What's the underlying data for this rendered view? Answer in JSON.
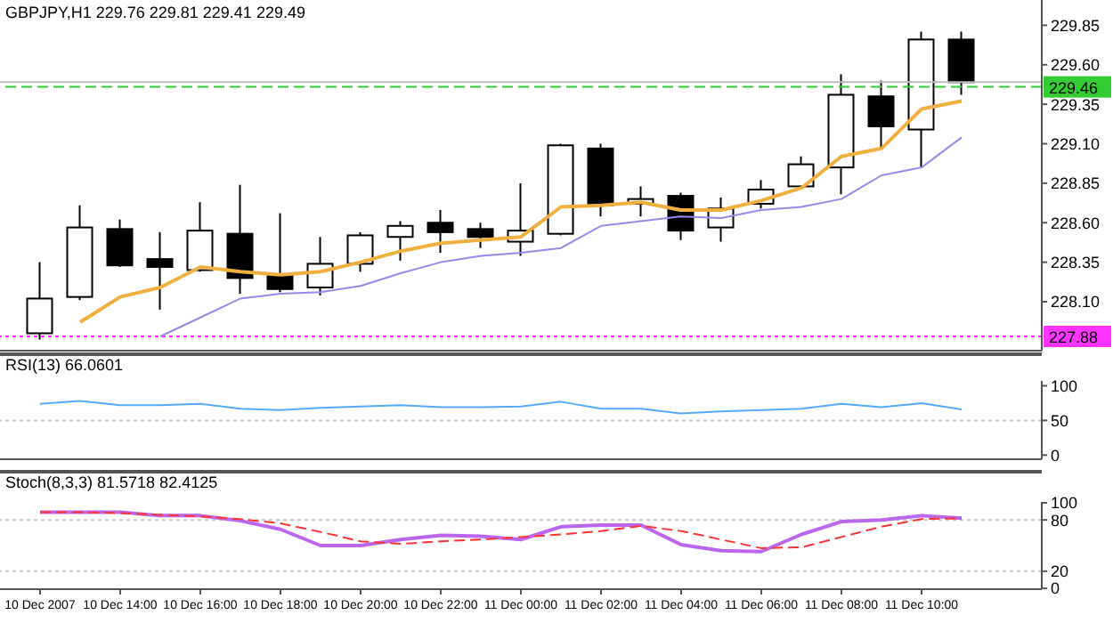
{
  "chart_data": [
    {
      "type": "candlestick",
      "title": "GBPJPY,H1 229.76 229.81 229.41 229.49",
      "tick_labels": "y",
      "grid": false,
      "marker": "none",
      "x": [
        "2007-12-10T12:00",
        "2007-12-10T13:00",
        "2007-12-10T14:00",
        "2007-12-10T15:00",
        "2007-12-10T16:00",
        "2007-12-10T17:00",
        "2007-12-10T18:00",
        "2007-12-10T19:00",
        "2007-12-10T20:00",
        "2007-12-10T21:00",
        "2007-12-10T22:00",
        "2007-12-10T23:00",
        "2007-12-11T00:00",
        "2007-12-11T01:00",
        "2007-12-11T02:00",
        "2007-12-11T03:00",
        "2007-12-11T04:00",
        "2007-12-11T05:00",
        "2007-12-11T06:00",
        "2007-12-11T07:00",
        "2007-12-11T08:00",
        "2007-12-11T09:00",
        "2007-12-11T10:00",
        "2007-12-11T11:00"
      ],
      "ohlc": [
        [
          227.9,
          228.35,
          227.86,
          228.12
        ],
        [
          228.13,
          228.71,
          228.11,
          228.57
        ],
        [
          228.56,
          228.62,
          228.32,
          228.33
        ],
        [
          228.37,
          228.54,
          228.05,
          228.32
        ],
        [
          228.3,
          228.73,
          228.29,
          228.55
        ],
        [
          228.53,
          228.84,
          228.15,
          228.25
        ],
        [
          228.27,
          228.66,
          228.16,
          228.18
        ],
        [
          228.19,
          228.51,
          228.14,
          228.34
        ],
        [
          228.34,
          228.54,
          228.29,
          228.52
        ],
        [
          228.51,
          228.61,
          228.36,
          228.58
        ],
        [
          228.6,
          228.68,
          228.41,
          228.54
        ],
        [
          228.56,
          228.6,
          228.44,
          228.51
        ],
        [
          228.48,
          228.85,
          228.39,
          228.55
        ],
        [
          228.53,
          229.1,
          228.52,
          229.09
        ],
        [
          229.07,
          229.1,
          228.64,
          228.71
        ],
        [
          228.72,
          228.83,
          228.64,
          228.75
        ],
        [
          228.77,
          228.79,
          228.49,
          228.55
        ],
        [
          228.57,
          228.76,
          228.48,
          228.69
        ],
        [
          228.72,
          228.87,
          228.69,
          228.81
        ],
        [
          228.83,
          229.02,
          228.81,
          228.97
        ],
        [
          228.95,
          229.54,
          228.78,
          229.41
        ],
        [
          229.4,
          229.5,
          229.07,
          229.21
        ],
        [
          229.19,
          229.81,
          228.95,
          229.76
        ],
        [
          229.76,
          229.81,
          229.41,
          229.49
        ]
      ],
      "series": [
        {
          "type": "line",
          "color": "#f0b040",
          "values": [
            null,
            227.97,
            228.13,
            228.19,
            228.32,
            228.29,
            228.27,
            228.29,
            228.35,
            228.42,
            228.47,
            228.49,
            228.51,
            228.7,
            228.71,
            228.73,
            228.68,
            228.68,
            228.74,
            228.82,
            229.02,
            229.07,
            229.32,
            229.37
          ]
        },
        {
          "type": "line",
          "color": "#9988ee",
          "values": [
            null,
            null,
            null,
            227.88,
            228.0,
            228.12,
            228.15,
            228.16,
            228.2,
            228.28,
            228.35,
            228.39,
            228.41,
            228.44,
            228.58,
            228.61,
            228.64,
            228.63,
            228.68,
            228.7,
            228.75,
            228.9,
            228.95,
            229.14
          ]
        }
      ],
      "xlim": [
        "2007-12-10T11:00",
        "2007-12-11T13:00"
      ],
      "ylim": [
        227.79,
        230.01
      ],
      "yticks": [
        {
          "value": 229.85,
          "label": "229.85"
        },
        {
          "value": 229.6,
          "label": "229.60"
        },
        {
          "value": 229.35,
          "label": "229.35"
        },
        {
          "value": 229.1,
          "label": "229.10"
        },
        {
          "value": 228.85,
          "label": "228.85"
        },
        {
          "value": 228.6,
          "label": "228.60"
        },
        {
          "value": 228.35,
          "label": "228.35"
        },
        {
          "value": 228.1,
          "label": "228.10"
        }
      ],
      "ref_lines": [
        {
          "axis": "y",
          "value": 229.46,
          "label": "229.46",
          "color": "#33cc33",
          "line_style": "dashed"
        },
        {
          "axis": "y",
          "value": 227.88,
          "label": "227.88",
          "color": "#ff33ff",
          "line_style": "dotted"
        },
        {
          "axis": "y",
          "value": 229.49,
          "color": "#bbbbbb",
          "line_style": "solid"
        }
      ]
    },
    {
      "type": "line",
      "title": "RSI(13) 66.0601",
      "tick_labels": "y",
      "grid": false,
      "marker": "none",
      "x": [
        "2007-12-10T12:00",
        "2007-12-10T13:00",
        "2007-12-10T14:00",
        "2007-12-10T15:00",
        "2007-12-10T16:00",
        "2007-12-10T17:00",
        "2007-12-10T18:00",
        "2007-12-10T19:00",
        "2007-12-10T20:00",
        "2007-12-10T21:00",
        "2007-12-10T22:00",
        "2007-12-10T23:00",
        "2007-12-11T00:00",
        "2007-12-11T01:00",
        "2007-12-11T02:00",
        "2007-12-11T03:00",
        "2007-12-11T04:00",
        "2007-12-11T05:00",
        "2007-12-11T06:00",
        "2007-12-11T07:00",
        "2007-12-11T08:00",
        "2007-12-11T09:00",
        "2007-12-11T10:00",
        "2007-12-11T11:00"
      ],
      "series": [
        {
          "color": "#55aaff",
          "values": [
            74,
            78,
            72,
            72,
            74,
            67,
            65,
            68,
            70,
            72,
            69,
            69,
            70,
            77,
            67,
            67,
            60,
            63,
            65,
            67,
            74,
            69,
            75,
            66
          ]
        }
      ],
      "xlim": [
        "2007-12-10T11:00",
        "2007-12-11T13:00"
      ],
      "ylim": [
        -6,
        107
      ],
      "yticks": [
        100,
        50,
        0
      ],
      "ref_lines": [
        {
          "axis": "y",
          "value": 50,
          "color": "#c8c8c8",
          "line_style": "dotted"
        }
      ]
    },
    {
      "type": "line",
      "title": "Stoch(8,3,3) 81.5718 82.4125",
      "grid": false,
      "marker": "none",
      "x": [
        "2007-12-10T12:00",
        "2007-12-10T13:00",
        "2007-12-10T14:00",
        "2007-12-10T15:00",
        "2007-12-10T16:00",
        "2007-12-10T17:00",
        "2007-12-10T18:00",
        "2007-12-10T19:00",
        "2007-12-10T20:00",
        "2007-12-10T21:00",
        "2007-12-10T22:00",
        "2007-12-10T23:00",
        "2007-12-11T00:00",
        "2007-12-11T01:00",
        "2007-12-11T02:00",
        "2007-12-11T03:00",
        "2007-12-11T04:00",
        "2007-12-11T05:00",
        "2007-12-11T06:00",
        "2007-12-11T07:00",
        "2007-12-11T08:00",
        "2007-12-11T09:00",
        "2007-12-11T10:00",
        "2007-12-11T11:00"
      ],
      "series": [
        {
          "color": "#bb66ee",
          "line_style": "solid",
          "values": [
            89,
            89,
            89,
            85,
            85,
            79,
            69,
            50,
            50,
            57,
            62,
            61,
            57,
            72,
            74,
            74,
            51,
            44,
            43,
            63,
            78,
            80,
            85,
            82
          ]
        },
        {
          "color": "#ff3333",
          "line_style": "dashed",
          "values": [
            89,
            89,
            88,
            86,
            84,
            81,
            76,
            66,
            55,
            52,
            55,
            57,
            60,
            63,
            67,
            73,
            67,
            57,
            47,
            48,
            60,
            72,
            81,
            82
          ]
        }
      ],
      "xlim": [
        "2007-12-10T11:00",
        "2007-12-11T13:00"
      ],
      "xticks": [
        {
          "value": "2007-12-10T12:00",
          "label": "10 Dec 2007"
        },
        {
          "value": "2007-12-10T14:00",
          "label": "10 Dec 14:00"
        },
        {
          "value": "2007-12-10T16:00",
          "label": "10 Dec 16:00"
        },
        {
          "value": "2007-12-10T18:00",
          "label": "10 Dec 18:00"
        },
        {
          "value": "2007-12-10T20:00",
          "label": "10 Dec 20:00"
        },
        {
          "value": "2007-12-10T22:00",
          "label": "10 Dec 22:00"
        },
        {
          "value": "2007-12-11T00:00",
          "label": "11 Dec 00:00"
        },
        {
          "value": "2007-12-11T02:00",
          "label": "11 Dec 02:00"
        },
        {
          "value": "2007-12-11T04:00",
          "label": "11 Dec 04:00"
        },
        {
          "value": "2007-12-11T06:00",
          "label": "11 Dec 06:00"
        },
        {
          "value": "2007-12-11T08:00",
          "label": "11 Dec 08:00"
        },
        {
          "value": "2007-12-11T10:00",
          "label": "11 Dec 10:00"
        }
      ],
      "ylim": [
        -1,
        101
      ],
      "yticks": [
        100,
        80,
        20,
        0
      ],
      "ref_lines": [
        {
          "axis": "y",
          "value": 80,
          "color": "#c8c8c8",
          "line_style": "dotted"
        },
        {
          "axis": "y",
          "value": 20,
          "color": "#c8c8c8",
          "line_style": "dotted"
        }
      ]
    }
  ]
}
